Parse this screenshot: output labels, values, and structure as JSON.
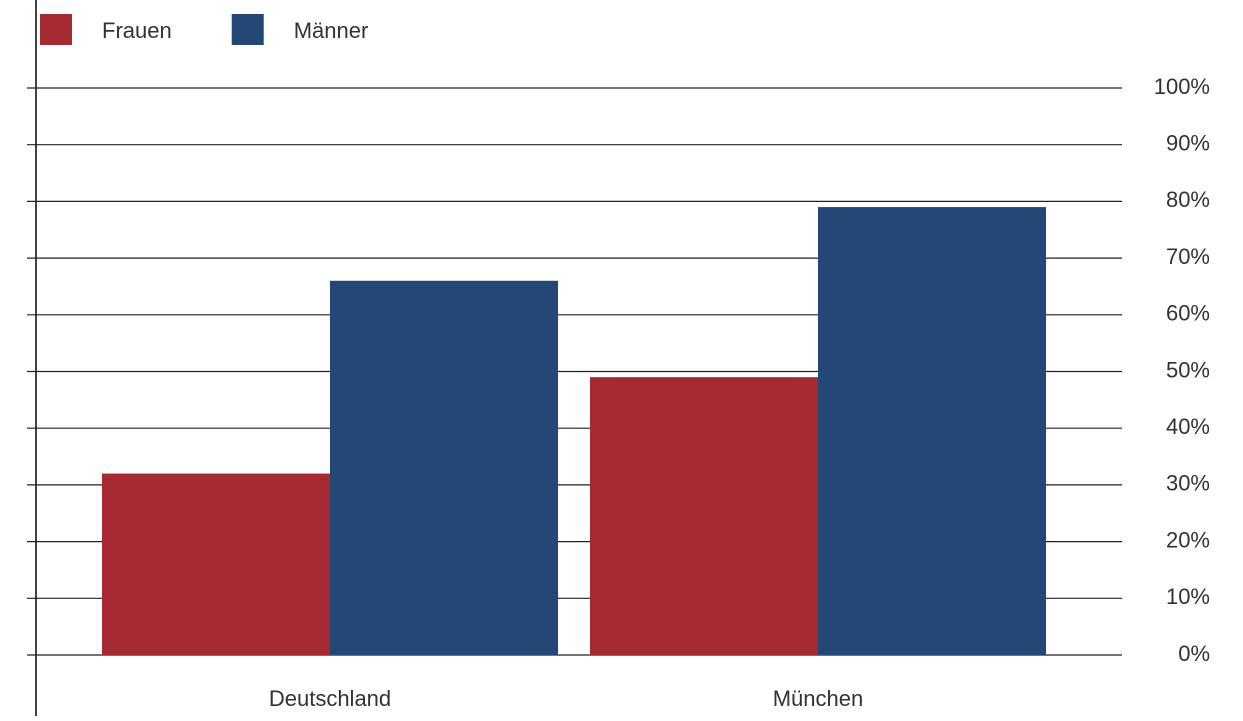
{
  "chart_data": {
    "type": "bar",
    "categories": [
      "Deutschland",
      "München"
    ],
    "series": [
      {
        "name": "Frauen",
        "color": "#a62a32",
        "values": [
          32,
          49
        ]
      },
      {
        "name": "Männer",
        "color": "#234876",
        "values": [
          66,
          79
        ]
      }
    ],
    "ylim": [
      0,
      100
    ],
    "yticks": [
      {
        "value": 0,
        "label": "0%"
      },
      {
        "value": 10,
        "label": "10%"
      },
      {
        "value": 20,
        "label": "20%"
      },
      {
        "value": 30,
        "label": "30%"
      },
      {
        "value": 40,
        "label": "40%"
      },
      {
        "value": 50,
        "label": "50%"
      },
      {
        "value": 60,
        "label": "60%"
      },
      {
        "value": 70,
        "label": "70%"
      },
      {
        "value": 80,
        "label": "80%"
      },
      {
        "value": 90,
        "label": "90%"
      },
      {
        "value": 100,
        "label": "100%"
      }
    ],
    "grid": true,
    "legend": "top-left"
  }
}
